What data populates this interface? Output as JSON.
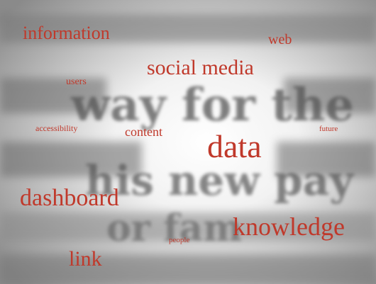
{
  "words": [
    "information",
    "web",
    "users",
    "social media",
    "accessibility",
    "content",
    "future",
    "data",
    "dashboard",
    "knowledge",
    "people",
    "link"
  ],
  "background_words": [
    "way for the",
    "his new pay",
    "or fam"
  ]
}
